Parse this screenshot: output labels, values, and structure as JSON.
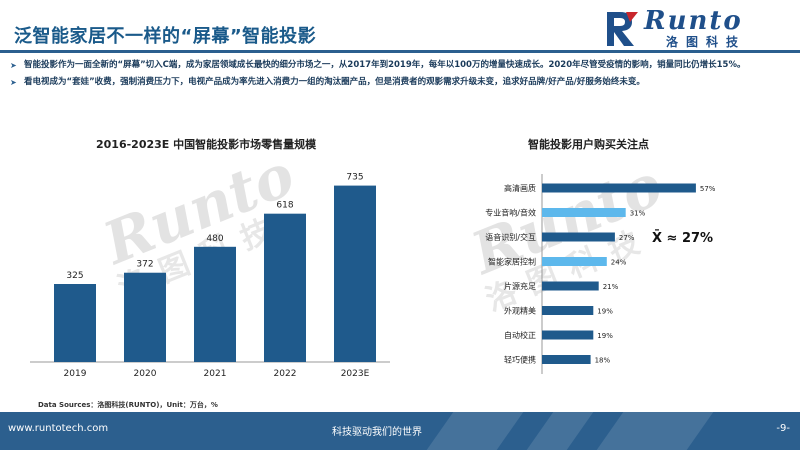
{
  "header": {
    "title": "泛智能家居不一样的“屏幕”智能投影",
    "logo_en": "Runto",
    "logo_cn": "洛图科技"
  },
  "bullets": [
    "智能投影作为一面全新的“屏幕”切入C端，成为家居领域成长最快的细分市场之一，从2017年到2019年，每年以100万的增量快速成长。2020年尽管受疫情的影响，销量同比仍增长15%。",
    "看电视成为“套娃”收费，强制消费压力下，电视产品成为率先进入消费力一组的淘汰圈产品，但是消费者的观影需求升级未变，追求好品牌/好产品/好服务始终未变。"
  ],
  "watermark": {
    "en": "Runto",
    "cn": "洛图科技"
  },
  "colors": {
    "bar_dark": "#1f5a8c",
    "bar_light": "#5db8ec",
    "footer": "#2c5f8e",
    "title": "#1a5a8a"
  },
  "chart_left": {
    "title": "2016-2023E 中国智能投影市场零售量规模",
    "chart_data": {
      "type": "bar",
      "categories": [
        "2019",
        "2020",
        "2021",
        "2022",
        "2023E"
      ],
      "values": [
        325,
        372,
        480,
        618,
        735
      ],
      "ylim": [
        0,
        800
      ],
      "grid": false
    }
  },
  "chart_right": {
    "title": "智能投影用户购买关注点",
    "annotation": "X̄ ≈ 27%",
    "chart_data": {
      "type": "bar",
      "orientation": "horizontal",
      "categories": [
        "高清画质",
        "专业音响/音效",
        "语音识别/交互",
        "智能家居控制",
        "片源充足",
        "外观精美",
        "自动校正",
        "轻巧便携"
      ],
      "values": [
        57,
        31,
        27,
        24,
        21,
        19,
        19,
        18
      ],
      "value_labels": [
        "57%",
        "31%",
        "27%",
        "24%",
        "21%",
        "19%",
        "19%",
        "18%"
      ],
      "highlight": [
        false,
        true,
        false,
        true,
        false,
        false,
        false,
        false
      ],
      "xlim": [
        0,
        60
      ],
      "grid": false
    }
  },
  "footnote": "Data Sources：洛图科技(RUNTO)，Unit：万台，%",
  "footer": {
    "url": "www.runtotech.com",
    "slogan": "科技驱动我们的世界",
    "page": "-9-"
  }
}
